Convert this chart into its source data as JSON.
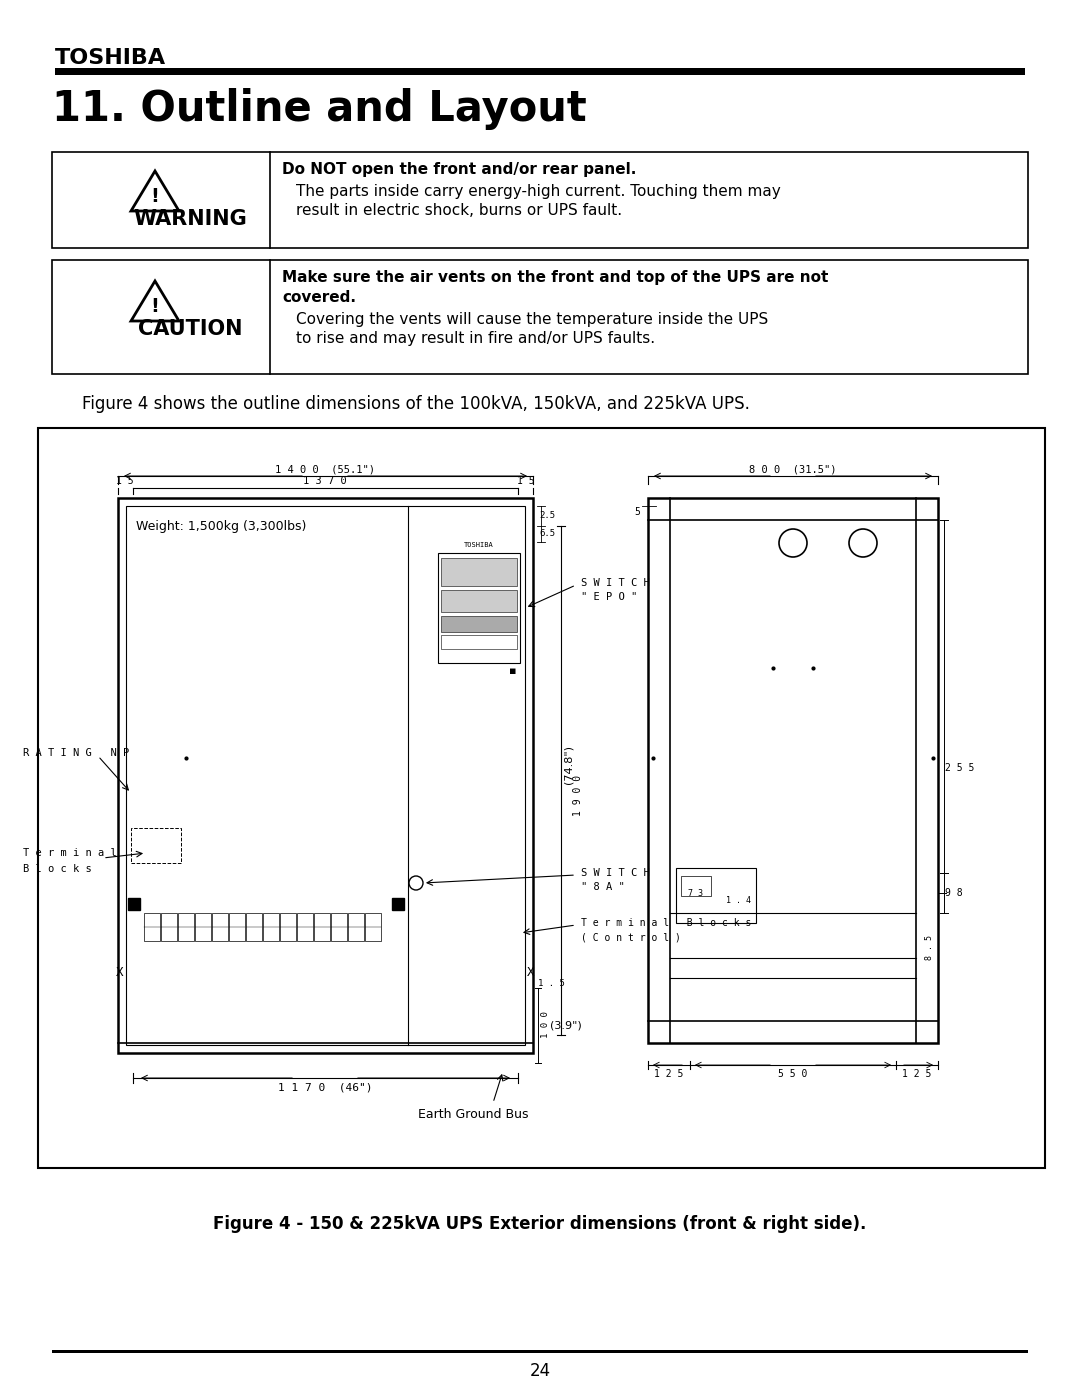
{
  "page_title": "TOSHIBA",
  "section_title": "11. Outline and Layout",
  "warning_bold": "Do NOT open the front and/or rear panel.",
  "warning_text1": "The parts inside carry energy-high current. Touching them may",
  "warning_text2": "result in electric shock, burns or UPS fault.",
  "caution_bold1": "Make sure the air vents on the front and top of the UPS are not",
  "caution_bold2": "covered.",
  "caution_text1": "Covering the vents will cause the temperature inside the UPS",
  "caution_text2": "to rise and may result in fire and/or UPS faults.",
  "figure_intro": "Figure 4 shows the outline dimensions of the 100kVA, 150kVA, and 225kVA UPS.",
  "figure_caption": "Figure 4 - 150 & 225kVA UPS Exterior dimensions (front & right side).",
  "page_number": "24",
  "bg_color": "#ffffff"
}
